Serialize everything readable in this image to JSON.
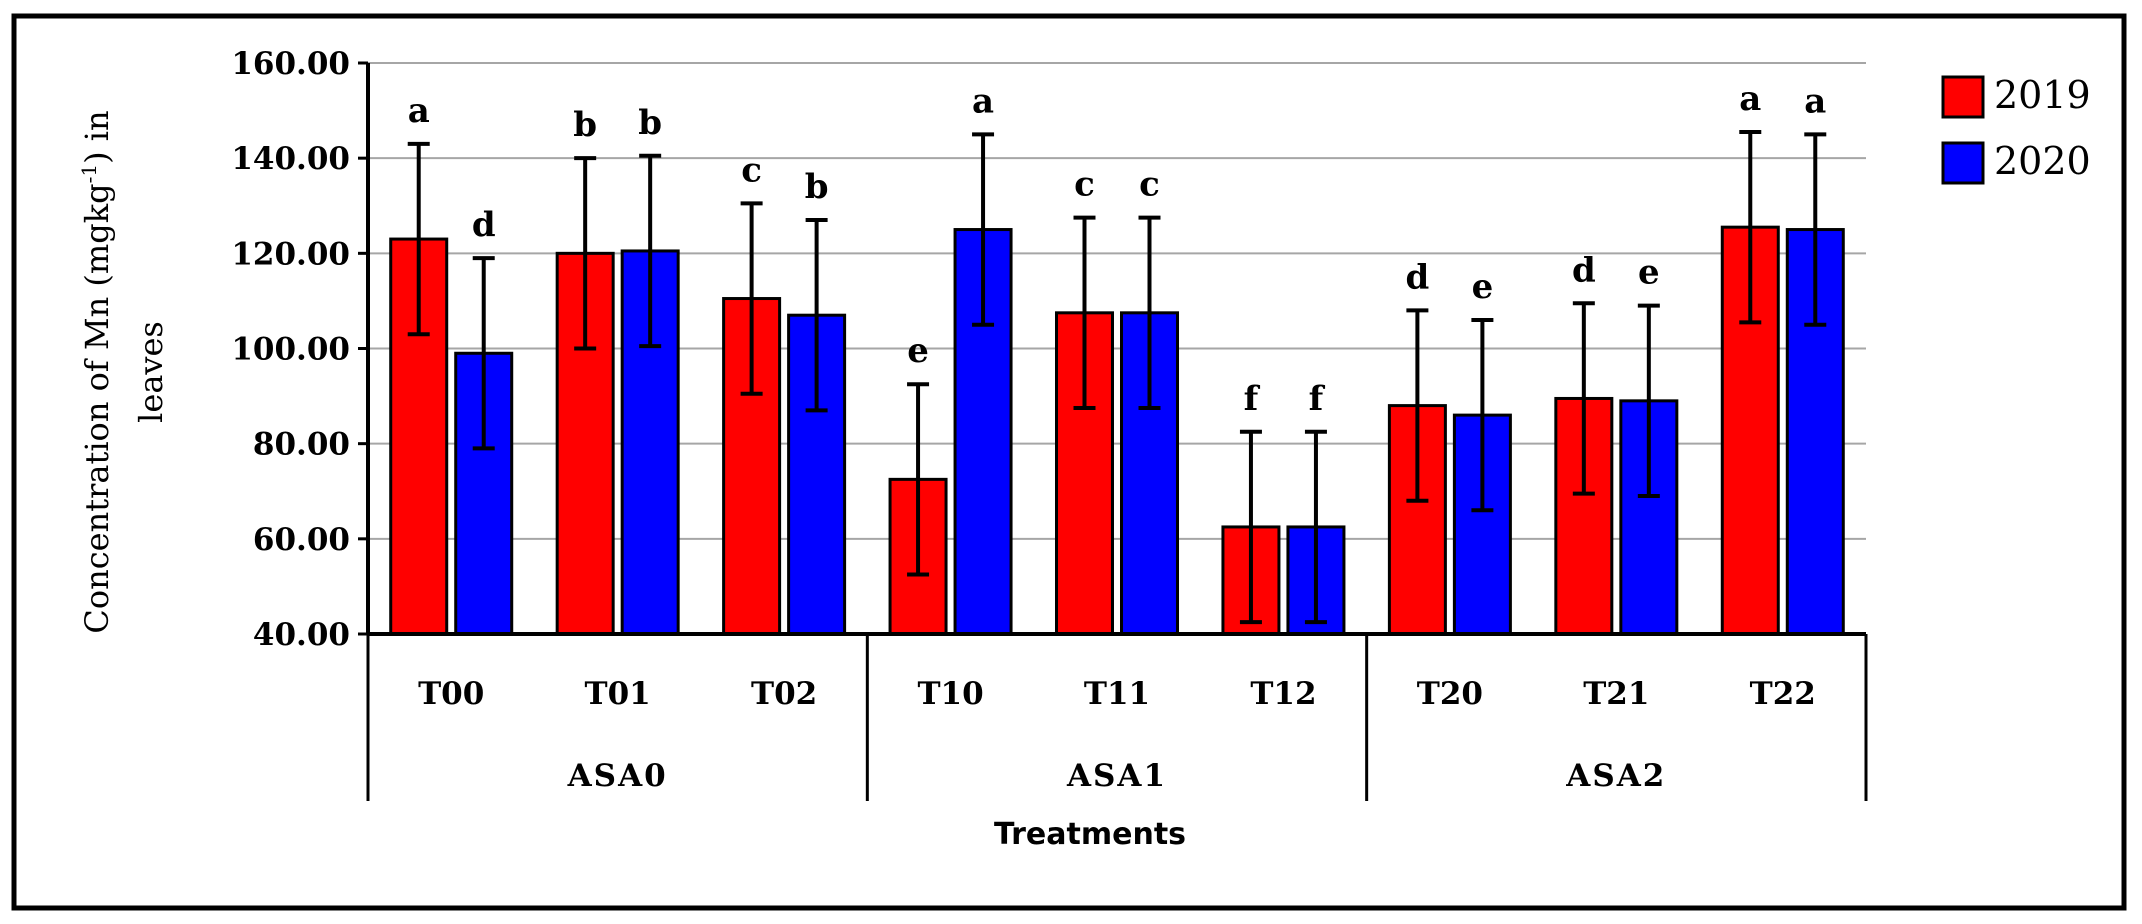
{
  "chart_data": {
    "type": "bar",
    "ylabel_prefix": "Concentration of Mn (mgkg",
    "ylabel_sup": "-1",
    "ylabel_suffix": ") in",
    "ylabel_line2": "leaves",
    "xlabel": "Treatments",
    "ylim": [
      40,
      160
    ],
    "yticks": [
      40,
      60,
      80,
      100,
      120,
      140,
      160
    ],
    "ytick_labels": [
      "40.00",
      "60.00",
      "80.00",
      "100.00",
      "120.00",
      "140.00",
      "160.00"
    ],
    "grid": true,
    "legend_position": "top-right",
    "categories": [
      "T00",
      "T01",
      "T02",
      "T10",
      "T11",
      "T12",
      "T20",
      "T21",
      "T22"
    ],
    "groups": [
      {
        "label": "ASA0",
        "categories": [
          "T00",
          "T01",
          "T02"
        ]
      },
      {
        "label": "ASA1",
        "categories": [
          "T10",
          "T11",
          "T12"
        ]
      },
      {
        "label": "ASA2",
        "categories": [
          "T20",
          "T21",
          "T22"
        ]
      }
    ],
    "series": [
      {
        "name": "2019",
        "color": "#ff0000",
        "values": [
          123,
          120,
          110.5,
          72.5,
          107.5,
          62.5,
          88,
          89.5,
          125.5
        ],
        "errors": [
          20,
          20,
          20,
          20,
          20,
          20,
          20,
          20,
          20
        ],
        "letters": [
          "a",
          "b",
          "c",
          "e",
          "c",
          "f",
          "d",
          "d",
          "a"
        ]
      },
      {
        "name": "2020",
        "color": "#0000ff",
        "values": [
          99,
          120.5,
          107,
          125,
          107.5,
          62.5,
          86,
          89,
          125
        ],
        "errors": [
          20,
          20,
          20,
          20,
          20,
          20,
          20,
          20,
          20
        ],
        "letters": [
          "d",
          "b",
          "b",
          "a",
          "c",
          "f",
          "e",
          "e",
          "a"
        ]
      }
    ]
  }
}
